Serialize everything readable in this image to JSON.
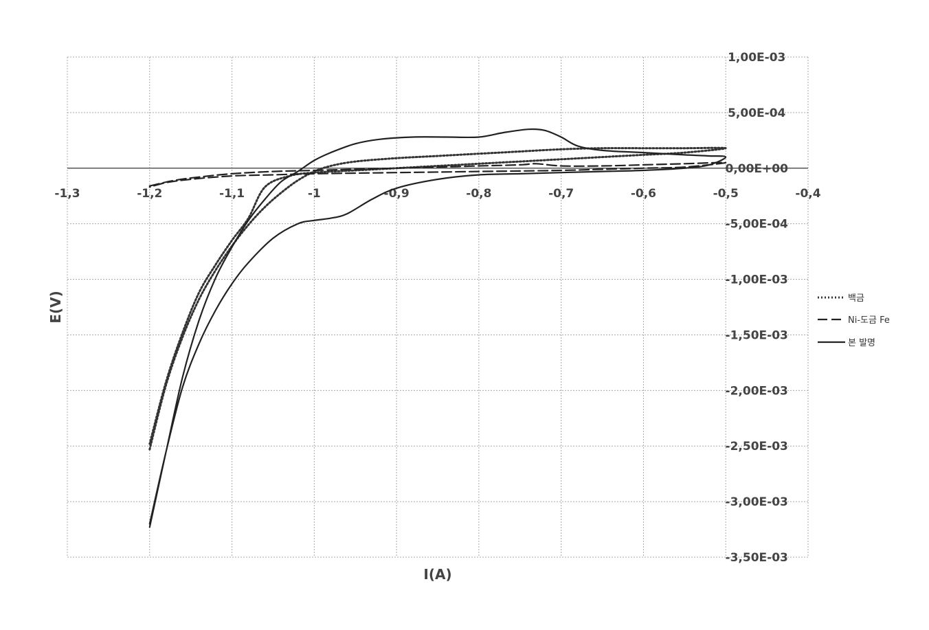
{
  "chart_data": {
    "type": "line",
    "title": "",
    "xlabel": "I(A)",
    "ylabel": "E(V)",
    "xlim": [
      -1.3,
      -0.4
    ],
    "ylim": [
      -0.0035,
      0.001
    ],
    "x_ticks": [
      -1.3,
      -1.2,
      -1.1,
      -1.0,
      -0.9,
      -0.8,
      -0.7,
      -0.6,
      -0.5,
      -0.4
    ],
    "x_tick_labels": [
      "-1,3",
      "-1,2",
      "-1,1",
      "-1",
      "-0,9",
      "-0,8",
      "-0,7",
      "-0,6",
      "-0,5",
      "-0,4"
    ],
    "y_ticks": [
      0.001,
      0.0005,
      0,
      -0.0005,
      -0.001,
      -0.0015,
      -0.002,
      -0.0025,
      -0.003,
      -0.0035
    ],
    "y_tick_labels": [
      "1,00E-03",
      "5,00E-04",
      "0,00E+00",
      "-5,00E-04",
      "-1,00E-03",
      "-1,50E-03",
      "-2,00E-03",
      "-2,50E-03",
      "-3,00E-03",
      "-3,50E-03"
    ],
    "grid": true,
    "legend_position": "right",
    "series": [
      {
        "name": "백금",
        "style": "dotted",
        "color": "#333333",
        "points": [
          [
            -1.2,
            -0.00253
          ],
          [
            -1.18,
            -0.00195
          ],
          [
            -1.16,
            -0.00152
          ],
          [
            -1.14,
            -0.00118
          ],
          [
            -1.12,
            -0.00092
          ],
          [
            -1.1,
            -0.0007
          ],
          [
            -1.08,
            -0.00051
          ],
          [
            -1.06,
            -0.00035
          ],
          [
            -1.04,
            -0.00022
          ],
          [
            -1.02,
            -0.00011
          ],
          [
            -1.0,
            -3e-05
          ],
          [
            -0.98,
            2e-05
          ],
          [
            -0.95,
            6e-05
          ],
          [
            -0.9,
            9e-05
          ],
          [
            -0.85,
            0.00011
          ],
          [
            -0.8,
            0.00013
          ],
          [
            -0.75,
            0.00015
          ],
          [
            -0.7,
            0.00017
          ],
          [
            -0.65,
            0.00018
          ],
          [
            -0.6,
            0.00018
          ],
          [
            -0.55,
            0.00018
          ],
          [
            -0.5,
            0.00018
          ],
          [
            -0.55,
            0.00014
          ],
          [
            -0.6,
            0.00012
          ],
          [
            -0.65,
            0.0001
          ],
          [
            -0.7,
            8e-05
          ],
          [
            -0.75,
            6e-05
          ],
          [
            -0.8,
            4e-05
          ],
          [
            -0.85,
            2e-05
          ],
          [
            -0.9,
            0.0
          ],
          [
            -0.95,
            -2e-05
          ],
          [
            -1.0,
            -4e-05
          ],
          [
            -1.03,
            -7e-05
          ],
          [
            -1.06,
            -0.00017
          ],
          [
            -1.08,
            -0.00045
          ],
          [
            -1.1,
            -0.00065
          ],
          [
            -1.12,
            -0.00087
          ],
          [
            -1.14,
            -0.00112
          ],
          [
            -1.16,
            -0.00148
          ],
          [
            -1.18,
            -0.00192
          ],
          [
            -1.2,
            -0.00248
          ]
        ]
      },
      {
        "name": "Ni-도금 Fe",
        "style": "dashed",
        "color": "#222222",
        "points": [
          [
            -1.2,
            -0.00016
          ],
          [
            -1.17,
            -0.00011
          ],
          [
            -1.14,
            -8e-05
          ],
          [
            -1.1,
            -5e-05
          ],
          [
            -1.05,
            -3e-05
          ],
          [
            -1.0,
            -2e-05
          ],
          [
            -0.95,
            -1e-05
          ],
          [
            -0.9,
            0.0
          ],
          [
            -0.85,
            1e-05
          ],
          [
            -0.8,
            2e-05
          ],
          [
            -0.75,
            3e-05
          ],
          [
            -0.73,
            4e-05
          ],
          [
            -0.7,
            2e-05
          ],
          [
            -0.65,
            2e-05
          ],
          [
            -0.6,
            3e-05
          ],
          [
            -0.55,
            4e-05
          ],
          [
            -0.5,
            5e-05
          ],
          [
            -0.55,
            1e-05
          ],
          [
            -0.6,
            0.0
          ],
          [
            -0.65,
            -1e-05
          ],
          [
            -0.7,
            -2e-05
          ],
          [
            -0.8,
            -3e-05
          ],
          [
            -0.9,
            -4e-05
          ],
          [
            -1.0,
            -5e-05
          ],
          [
            -1.05,
            -6e-05
          ],
          [
            -1.1,
            -7e-05
          ],
          [
            -1.15,
            -0.0001
          ],
          [
            -1.18,
            -0.00013
          ],
          [
            -1.2,
            -0.00017
          ]
        ]
      },
      {
        "name": "본 발명",
        "style": "solid",
        "color": "#222222",
        "points": [
          [
            -1.2,
            -0.00323
          ],
          [
            -1.18,
            -0.00255
          ],
          [
            -1.16,
            -0.00188
          ],
          [
            -1.14,
            -0.00137
          ],
          [
            -1.12,
            -0.00099
          ],
          [
            -1.1,
            -0.00071
          ],
          [
            -1.08,
            -0.00047
          ],
          [
            -1.06,
            -0.00028
          ],
          [
            -1.04,
            -0.00012
          ],
          [
            -1.02,
            -3e-05
          ],
          [
            -1.0,
            7e-05
          ],
          [
            -0.98,
            0.00014
          ],
          [
            -0.95,
            0.00022
          ],
          [
            -0.92,
            0.00026
          ],
          [
            -0.88,
            0.00028
          ],
          [
            -0.84,
            0.00028
          ],
          [
            -0.8,
            0.00028
          ],
          [
            -0.77,
            0.00032
          ],
          [
            -0.74,
            0.00035
          ],
          [
            -0.72,
            0.00034
          ],
          [
            -0.7,
            0.00028
          ],
          [
            -0.68,
            0.0002
          ],
          [
            -0.65,
            0.00016
          ],
          [
            -0.6,
            0.00014
          ],
          [
            -0.55,
            0.00012
          ],
          [
            -0.52,
            0.00011
          ],
          [
            -0.5,
            0.0001
          ],
          [
            -0.52,
            3e-05
          ],
          [
            -0.55,
            0.0
          ],
          [
            -0.6,
            -2e-05
          ],
          [
            -0.65,
            -3e-05
          ],
          [
            -0.7,
            -4e-05
          ],
          [
            -0.75,
            -5e-05
          ],
          [
            -0.8,
            -6e-05
          ],
          [
            -0.85,
            -0.0001
          ],
          [
            -0.9,
            -0.00018
          ],
          [
            -0.93,
            -0.00028
          ],
          [
            -0.96,
            -0.00041
          ],
          [
            -0.98,
            -0.00045
          ],
          [
            -1.0,
            -0.00047
          ],
          [
            -1.02,
            -0.0005
          ],
          [
            -1.05,
            -0.00063
          ],
          [
            -1.08,
            -0.00085
          ],
          [
            -1.1,
            -0.00104
          ],
          [
            -1.12,
            -0.00128
          ],
          [
            -1.14,
            -0.00158
          ],
          [
            -1.16,
            -0.00197
          ],
          [
            -1.18,
            -0.00255
          ],
          [
            -1.2,
            -0.0032
          ]
        ]
      }
    ]
  }
}
